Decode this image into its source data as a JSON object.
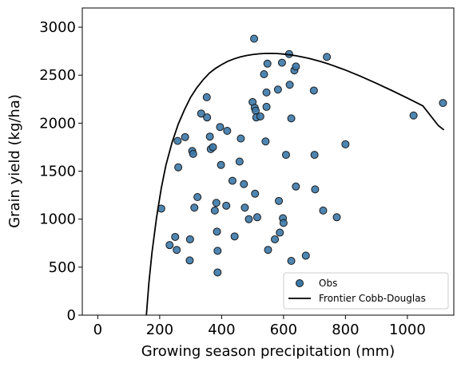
{
  "chart_data": {
    "type": "scatter",
    "xlabel": "Growing season precipitation (mm)",
    "ylabel": "Grain yield (kg/ha)",
    "xlim": [
      -50,
      1150
    ],
    "ylim": [
      0,
      3200
    ],
    "x_ticks": [
      0,
      200,
      400,
      600,
      800,
      1000
    ],
    "y_ticks": [
      0,
      500,
      1000,
      1500,
      2000,
      2500,
      3000
    ],
    "grid": false,
    "legend_position": "bottom-right",
    "colors": {
      "points": "#3b78a8",
      "point_edge": "#1a1a1a",
      "line": "#000000"
    },
    "series": [
      {
        "name": "Obs",
        "kind": "scatter",
        "points": [
          [
            205,
            1110
          ],
          [
            232,
            730
          ],
          [
            250,
            815
          ],
          [
            255,
            680
          ],
          [
            258,
            1815
          ],
          [
            260,
            1540
          ],
          [
            282,
            1855
          ],
          [
            297,
            570
          ],
          [
            298,
            790
          ],
          [
            305,
            1710
          ],
          [
            308,
            1680
          ],
          [
            312,
            1120
          ],
          [
            322,
            1230
          ],
          [
            334,
            2100
          ],
          [
            352,
            2270
          ],
          [
            353,
            2060
          ],
          [
            362,
            1860
          ],
          [
            365,
            1730
          ],
          [
            372,
            1750
          ],
          [
            378,
            1090
          ],
          [
            383,
            1170
          ],
          [
            385,
            870
          ],
          [
            387,
            670
          ],
          [
            387,
            445
          ],
          [
            395,
            1960
          ],
          [
            398,
            1565
          ],
          [
            415,
            1140
          ],
          [
            418,
            1920
          ],
          [
            435,
            1400
          ],
          [
            442,
            820
          ],
          [
            458,
            1600
          ],
          [
            462,
            1840
          ],
          [
            472,
            1365
          ],
          [
            475,
            1120
          ],
          [
            488,
            1000
          ],
          [
            500,
            2220
          ],
          [
            505,
            2880
          ],
          [
            507,
            2160
          ],
          [
            508,
            1265
          ],
          [
            510,
            2130
          ],
          [
            512,
            2060
          ],
          [
            515,
            1020
          ],
          [
            525,
            2070
          ],
          [
            537,
            2510
          ],
          [
            542,
            1810
          ],
          [
            545,
            2320
          ],
          [
            545,
            2170
          ],
          [
            548,
            2620
          ],
          [
            550,
            680
          ],
          [
            572,
            790
          ],
          [
            582,
            2350
          ],
          [
            585,
            1190
          ],
          [
            588,
            860
          ],
          [
            595,
            2630
          ],
          [
            598,
            1010
          ],
          [
            600,
            960
          ],
          [
            608,
            1670
          ],
          [
            618,
            2720
          ],
          [
            620,
            2400
          ],
          [
            625,
            2050
          ],
          [
            625,
            565
          ],
          [
            635,
            2550
          ],
          [
            640,
            2590
          ],
          [
            640,
            1340
          ],
          [
            672,
            620
          ],
          [
            698,
            2340
          ],
          [
            700,
            1670
          ],
          [
            702,
            1310
          ],
          [
            728,
            1090
          ],
          [
            740,
            2690
          ],
          [
            772,
            1020
          ],
          [
            800,
            1780
          ],
          [
            1020,
            2080
          ],
          [
            1115,
            2210
          ]
        ]
      },
      {
        "name": "Frontier Cobb-Douglas",
        "kind": "line",
        "points": [
          [
            157,
            0
          ],
          [
            165,
            330
          ],
          [
            175,
            650
          ],
          [
            190,
            1020
          ],
          [
            205,
            1320
          ],
          [
            220,
            1560
          ],
          [
            240,
            1800
          ],
          [
            260,
            1990
          ],
          [
            280,
            2140
          ],
          [
            300,
            2270
          ],
          [
            320,
            2370
          ],
          [
            340,
            2450
          ],
          [
            360,
            2520
          ],
          [
            380,
            2570
          ],
          [
            400,
            2610
          ],
          [
            420,
            2645
          ],
          [
            440,
            2670
          ],
          [
            460,
            2690
          ],
          [
            480,
            2705
          ],
          [
            500,
            2715
          ],
          [
            520,
            2722
          ],
          [
            540,
            2726
          ],
          [
            560,
            2727
          ],
          [
            580,
            2725
          ],
          [
            600,
            2720
          ],
          [
            620,
            2712
          ],
          [
            640,
            2702
          ],
          [
            660,
            2690
          ],
          [
            680,
            2676
          ],
          [
            700,
            2660
          ],
          [
            720,
            2642
          ],
          [
            740,
            2622
          ],
          [
            760,
            2600
          ],
          [
            780,
            2577
          ],
          [
            800,
            2553
          ],
          [
            850,
            2487
          ],
          [
            900,
            2415
          ],
          [
            950,
            2340
          ],
          [
            1000,
            2262
          ],
          [
            1050,
            2180
          ],
          [
            1100,
            1975
          ],
          [
            1118,
            1930
          ]
        ]
      }
    ]
  }
}
